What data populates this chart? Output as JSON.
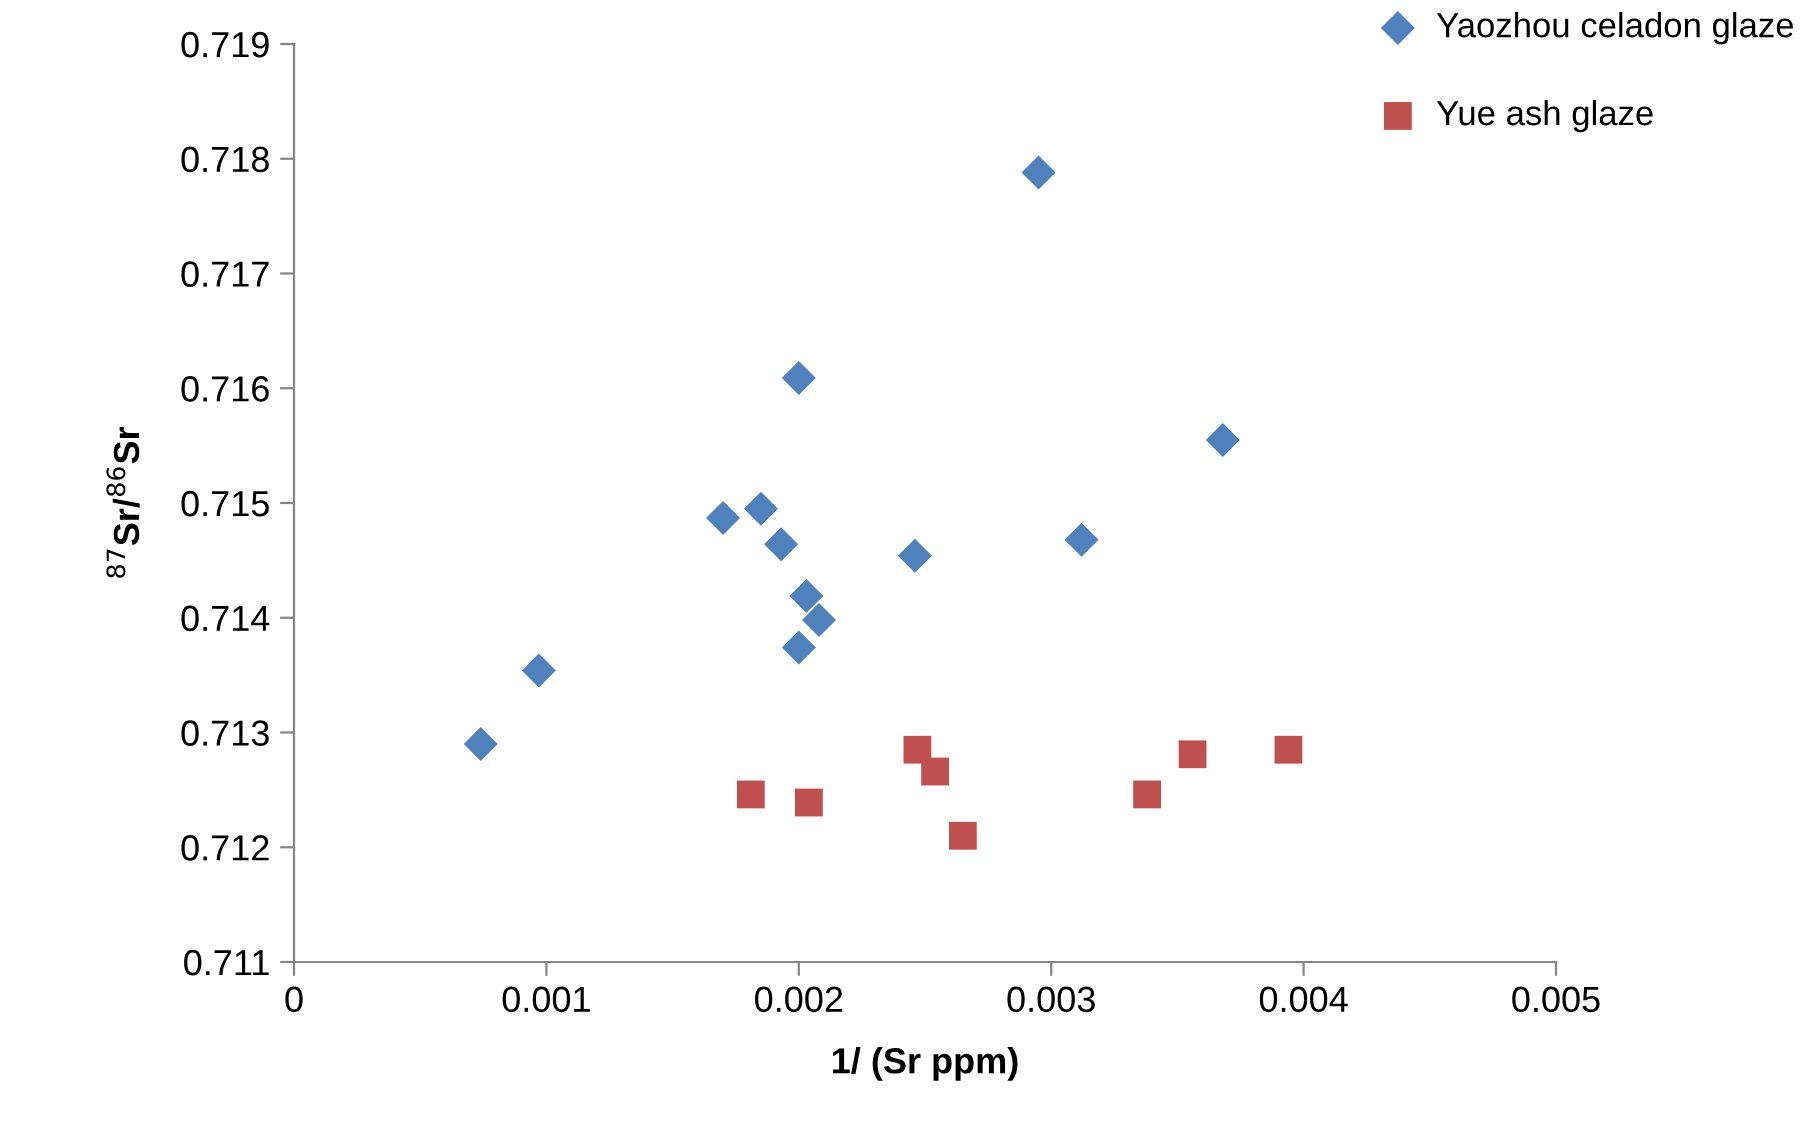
{
  "chart_data": {
    "type": "scatter",
    "xlabel": "1/ (Sr ppm)",
    "ylabel": "$^{87}$Sr/$^{86}$Sr",
    "xlim": [
      0,
      0.005
    ],
    "xticks": [
      0,
      0.001,
      0.002,
      0.003,
      0.004,
      0.005
    ],
    "ylim": [
      0.711,
      0.719
    ],
    "yticks": [
      0.711,
      0.712,
      0.713,
      0.714,
      0.715,
      0.716,
      0.717,
      0.718,
      0.719
    ],
    "grid": false,
    "legend": "top right",
    "series": [
      {
        "name": "Yaozhou celadon glaze",
        "color": "#4f81bd",
        "marker": "diamond",
        "x": [
          0.00074,
          0.00097,
          0.0017,
          0.00185,
          0.00193,
          0.002,
          0.00203,
          0.00208,
          0.002,
          0.00246,
          0.00295,
          0.00312,
          0.00368
        ],
        "values": [
          0.7129,
          0.71354,
          0.71487,
          0.71495,
          0.71464,
          0.71609,
          0.71419,
          0.71398,
          0.71374,
          0.71454,
          0.71788,
          0.71468,
          0.71555
        ]
      },
      {
        "name": "Yue ash glaze",
        "color": "#c0504d",
        "marker": "square",
        "x": [
          0.00181,
          0.00204,
          0.00247,
          0.00254,
          0.00265,
          0.00338,
          0.00356,
          0.00394
        ],
        "values": [
          0.71246,
          0.71239,
          0.71285,
          0.71266,
          0.7121,
          0.71246,
          0.71281,
          0.71285
        ]
      }
    ]
  }
}
